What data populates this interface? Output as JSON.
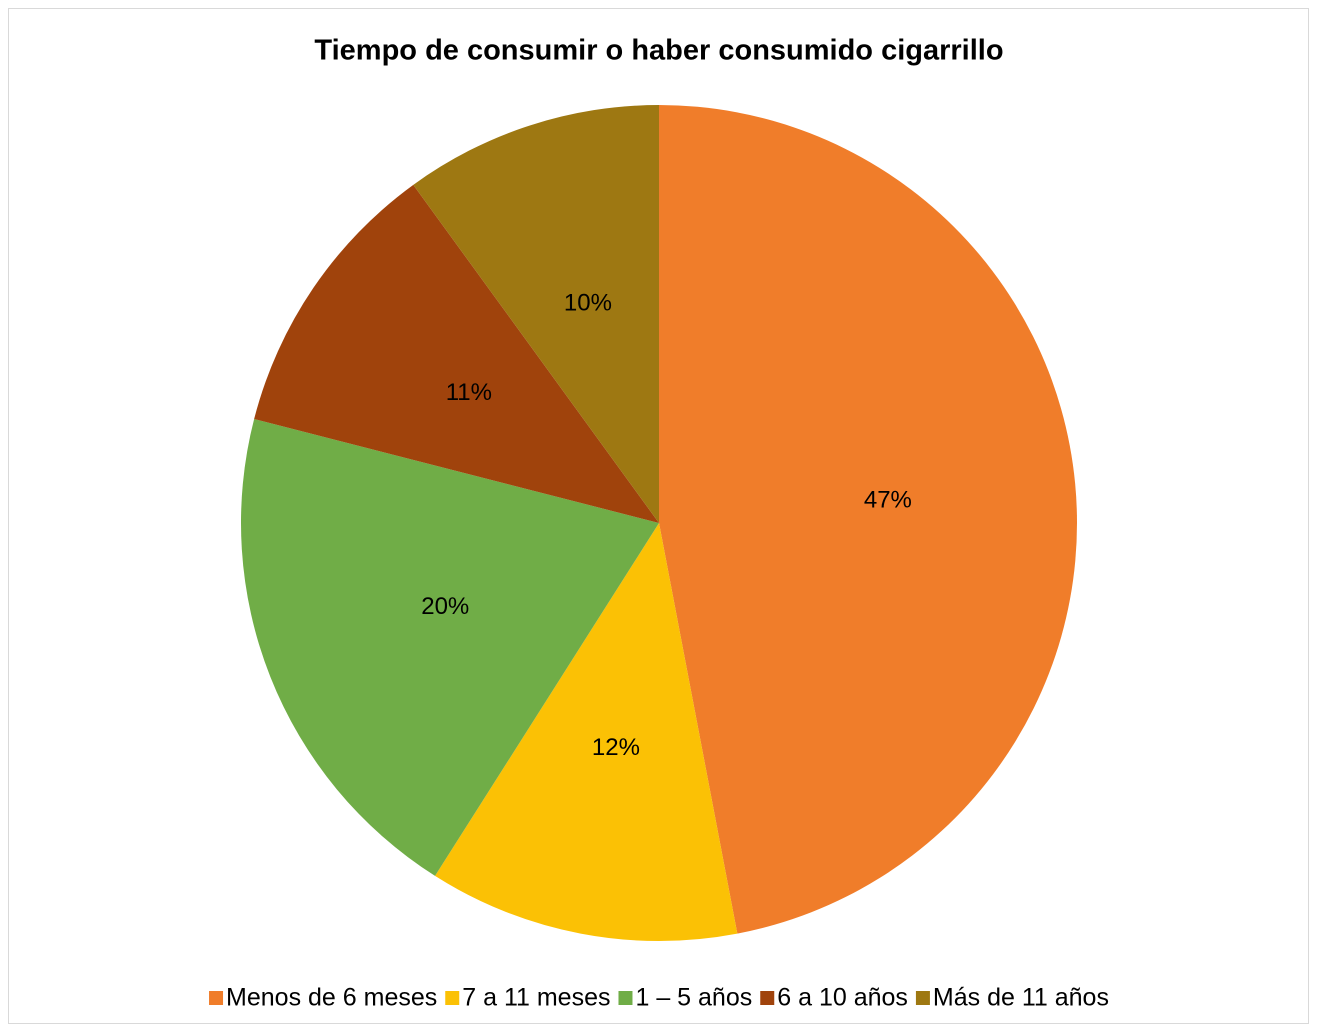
{
  "chart_data": {
    "type": "pie",
    "title": "Tiempo de consumir o haber consumido cigarrillo",
    "categories": [
      "Menos de 6 meses",
      "7 a 11 meses",
      "1 – 5 años",
      "6 a 10 años",
      "Más de 11 años"
    ],
    "values": [
      47,
      12,
      20,
      11,
      10
    ],
    "value_labels": [
      "47%",
      "12%",
      "20%",
      "11%",
      "10%"
    ],
    "colors": [
      "#f07d2a",
      "#fbc105",
      "#70ad47",
      "#a0430c",
      "#9e7812"
    ],
    "legend": "bottom"
  }
}
